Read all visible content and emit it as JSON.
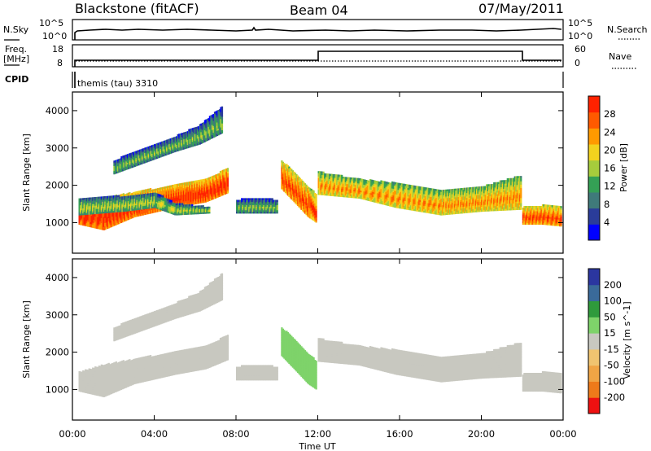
{
  "header": {
    "station": "Blackstone (fitACF)",
    "beam": "Beam 04",
    "date": "07/May/2011"
  },
  "noise_panel": {
    "left_label": "N.Sky",
    "right_label": "N.Search",
    "left_ticks": [
      "10^5",
      "10^0"
    ],
    "right_ticks": [
      "10^5",
      "10^0"
    ]
  },
  "freq_panel": {
    "left_label_1": "Freq.",
    "left_label_2": "[MHz]",
    "right_label": "Nave",
    "left_ticks": [
      "18",
      "8"
    ],
    "right_ticks": [
      "60",
      "0"
    ]
  },
  "cpid_panel": {
    "label": "CPID",
    "text": "themis (tau) 3310"
  },
  "x_axis": {
    "label": "Time UT",
    "ticks": [
      "00:00",
      "04:00",
      "08:00",
      "12:00",
      "16:00",
      "20:00",
      "00:00"
    ]
  },
  "colors": {
    "power_scale": [
      "#0000ff",
      "#2a3c9a",
      "#3f7a7a",
      "#34a055",
      "#a6cc3c",
      "#f2d21e",
      "#ff9a00",
      "#ff5a00",
      "#ff2200"
    ],
    "velocity_scale": [
      "#ee1111",
      "#ee7a1a",
      "#f0a545",
      "#f0c470",
      "#c8c8c0",
      "#7ed36a",
      "#2f9a3c",
      "#3a6a9a",
      "#2b36a0"
    ]
  },
  "chart_data": [
    {
      "type": "heatmap",
      "name": "power",
      "ylabel": "Slant Range [km]",
      "colorbar_label": "Power [dB]",
      "colorbar_ticks": [
        "4",
        "8",
        "12",
        "16",
        "20",
        "24",
        "28"
      ],
      "x_unit": "hours UT",
      "xlim": [
        0,
        24
      ],
      "ylim": [
        180,
        4500
      ],
      "yticks": [
        1000,
        2000,
        3000,
        4000
      ],
      "bands": [
        {
          "x": [
            0.3,
            1.5,
            3.0,
            5.0,
            6.5,
            7.6
          ],
          "lo": [
            950,
            800,
            1150,
            1400,
            1550,
            1800
          ],
          "hi": [
            1450,
            1650,
            1800,
            2000,
            2150,
            2450
          ],
          "power": 24
        },
        {
          "x": [
            2.0,
            3.5,
            5.0,
            6.2,
            7.3
          ],
          "lo": [
            2300,
            2600,
            2900,
            3100,
            3400
          ],
          "hi": [
            2650,
            3000,
            3300,
            3600,
            4100
          ],
          "power": 10
        },
        {
          "x": [
            0.3,
            2.5,
            4.0,
            5.0,
            6.7
          ],
          "lo": [
            1200,
            1300,
            1400,
            1200,
            1250
          ],
          "hi": [
            1650,
            1700,
            1800,
            1500,
            1400
          ],
          "power": 12
        },
        {
          "x": [
            10.2,
            10.9,
            11.5,
            11.9
          ],
          "lo": [
            1900,
            1500,
            1150,
            1000
          ],
          "hi": [
            2650,
            2300,
            1950,
            1750
          ],
          "power": 22
        },
        {
          "x": [
            8.0,
            9.0,
            10.0
          ],
          "lo": [
            1250,
            1250,
            1250
          ],
          "hi": [
            1600,
            1650,
            1600
          ],
          "power": 10
        },
        {
          "x": [
            12.0,
            14.0,
            15.8,
            18.0,
            20.0,
            21.9
          ],
          "lo": [
            1750,
            1650,
            1400,
            1200,
            1300,
            1350
          ],
          "hi": [
            2350,
            2150,
            2050,
            1850,
            1950,
            2250
          ],
          "power": 18
        },
        {
          "x": [
            22.0,
            23.0,
            23.9
          ],
          "lo": [
            950,
            950,
            900
          ],
          "hi": [
            1400,
            1450,
            1400
          ],
          "power": 22
        }
      ]
    },
    {
      "type": "heatmap",
      "name": "velocity",
      "ylabel": "Slant Range [km]",
      "colorbar_label": "Velocity [m s^-1]",
      "colorbar_ticks": [
        "200",
        "100",
        "50",
        "15",
        "-15",
        "-50",
        "-100",
        "-200"
      ],
      "x_unit": "hours UT",
      "xlim": [
        0,
        24
      ],
      "ylim": [
        180,
        4500
      ],
      "yticks": [
        1000,
        2000,
        3000,
        4000
      ],
      "bands": [
        {
          "x": [
            0.3,
            1.5,
            3.0,
            5.0,
            6.5,
            7.6
          ],
          "lo": [
            950,
            800,
            1150,
            1400,
            1550,
            1800
          ],
          "hi": [
            1450,
            1650,
            1800,
            2000,
            2150,
            2450
          ],
          "velocity": 0
        },
        {
          "x": [
            2.0,
            3.5,
            5.0,
            6.2,
            7.3
          ],
          "lo": [
            2300,
            2600,
            2900,
            3100,
            3400
          ],
          "hi": [
            2650,
            3000,
            3300,
            3600,
            4100
          ],
          "velocity": 0
        },
        {
          "x": [
            10.2,
            10.9,
            11.5,
            11.9
          ],
          "lo": [
            1900,
            1500,
            1150,
            1000
          ],
          "hi": [
            2650,
            2300,
            1950,
            1750
          ],
          "velocity": 30
        },
        {
          "x": [
            8.0,
            9.0,
            10.0
          ],
          "lo": [
            1250,
            1250,
            1250
          ],
          "hi": [
            1600,
            1650,
            1600
          ],
          "velocity": 0
        },
        {
          "x": [
            12.0,
            14.0,
            15.8,
            18.0,
            20.0,
            21.9
          ],
          "lo": [
            1750,
            1650,
            1400,
            1200,
            1300,
            1350
          ],
          "hi": [
            2350,
            2150,
            2050,
            1850,
            1950,
            2250
          ],
          "velocity": 0
        },
        {
          "x": [
            22.0,
            23.0,
            23.9
          ],
          "lo": [
            950,
            950,
            900
          ],
          "hi": [
            1400,
            1450,
            1400
          ],
          "velocity": 0
        }
      ]
    }
  ]
}
